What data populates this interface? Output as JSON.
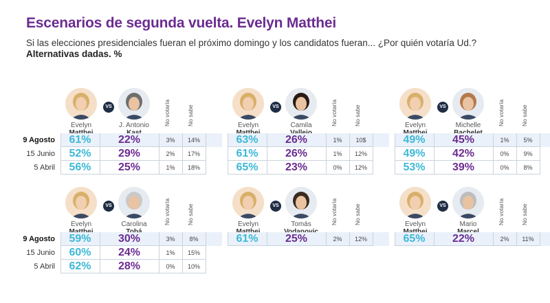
{
  "title": "Escenarios de segunda vuelta. Evelyn Matthei",
  "subtitle": "Si las elecciones presidenciales fueran el próximo domingo y los candidatos fueran... ¿Por quién votaría Ud.?",
  "subtitle2": "Alternativas dadas. %",
  "vs_label": "VS",
  "col_no_votaria": "No votaría",
  "col_no_sabe": "No sabe",
  "date_labels": [
    "9 Agosto",
    "15 Junio",
    "5 Abril"
  ],
  "colors": {
    "title": "#6b2c91",
    "matthei": "#3db8d6",
    "rival": "#6b2c91",
    "highlight_row": "#eaf1fa",
    "vs_badge": "#1f2d45"
  },
  "chart_data": [
    {
      "type": "table",
      "candidate_a": {
        "first": "Evelyn",
        "last": "Matthei"
      },
      "candidate_b": {
        "first": "J. Antonio",
        "last": "Kast"
      },
      "rows": [
        {
          "date": "9 Agosto",
          "a": "61%",
          "b": "22%",
          "no_votaria": "3%",
          "no_sabe": "14%"
        },
        {
          "date": "15 Junio",
          "a": "52%",
          "b": "29%",
          "no_votaria": "2%",
          "no_sabe": "17%"
        },
        {
          "date": "5 Abril",
          "a": "56%",
          "b": "25%",
          "no_votaria": "1%",
          "no_sabe": "18%"
        }
      ]
    },
    {
      "type": "table",
      "candidate_a": {
        "first": "Evelyn",
        "last": "Matthei"
      },
      "candidate_b": {
        "first": "Camila",
        "last": "Vallejo"
      },
      "rows": [
        {
          "date": "9 Agosto",
          "a": "63%",
          "b": "26%",
          "no_votaria": "1%",
          "no_sabe": "10$"
        },
        {
          "date": "15 Junio",
          "a": "61%",
          "b": "26%",
          "no_votaria": "1%",
          "no_sabe": "12%"
        },
        {
          "date": "5 Abril",
          "a": "65%",
          "b": "23%",
          "no_votaria": "0%",
          "no_sabe": "12%"
        }
      ]
    },
    {
      "type": "table",
      "candidate_a": {
        "first": "Evelyn",
        "last": "Matthei"
      },
      "candidate_b": {
        "first": "Michelle",
        "last": "Bachelet"
      },
      "rows": [
        {
          "date": "9 Agosto",
          "a": "49%",
          "b": "45%",
          "no_votaria": "1%",
          "no_sabe": "5%"
        },
        {
          "date": "15 Junio",
          "a": "49%",
          "b": "42%",
          "no_votaria": "0%",
          "no_sabe": "9%"
        },
        {
          "date": "5 Abril",
          "a": "53%",
          "b": "39%",
          "no_votaria": "0%",
          "no_sabe": "8%"
        }
      ]
    },
    {
      "type": "table",
      "candidate_a": {
        "first": "Evelyn",
        "last": "Matthei"
      },
      "candidate_b": {
        "first": "Carolina",
        "last": "Tohá"
      },
      "rows": [
        {
          "date": "9 Agosto",
          "a": "59%",
          "b": "30%",
          "no_votaria": "3%",
          "no_sabe": "8%"
        },
        {
          "date": "15 Junio",
          "a": "60%",
          "b": "24%",
          "no_votaria": "1%",
          "no_sabe": "15%"
        },
        {
          "date": "5 Abril",
          "a": "62%",
          "b": "28%",
          "no_votaria": "0%",
          "no_sabe": "10%"
        }
      ]
    },
    {
      "type": "table",
      "candidate_a": {
        "first": "Evelyn",
        "last": "Matthei"
      },
      "candidate_b": {
        "first": "Tomás",
        "last": "Vodanovic"
      },
      "rows": [
        {
          "date": "9 Agosto",
          "a": "61%",
          "b": "25%",
          "no_votaria": "2%",
          "no_sabe": "12%"
        }
      ]
    },
    {
      "type": "table",
      "candidate_a": {
        "first": "Evelyn",
        "last": "Matthei"
      },
      "candidate_b": {
        "first": "Mario",
        "last": "Marcel"
      },
      "rows": [
        {
          "date": "9 Agosto",
          "a": "65%",
          "b": "22%",
          "no_votaria": "2%",
          "no_sabe": "11%"
        }
      ]
    }
  ]
}
